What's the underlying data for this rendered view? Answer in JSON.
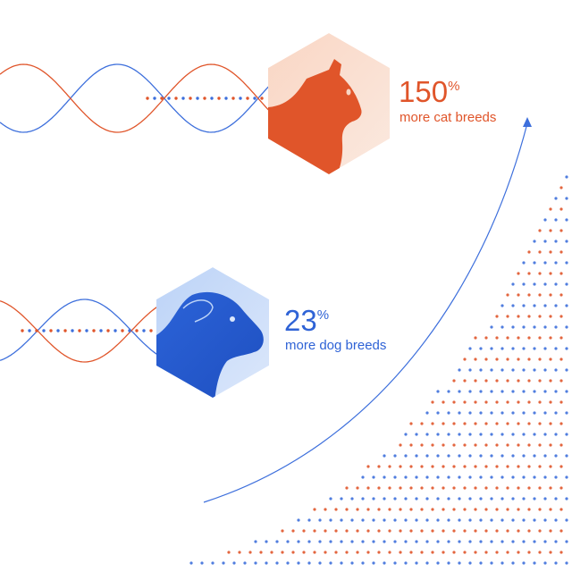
{
  "stats": [
    {
      "value": "150",
      "unit": "%",
      "label": "more cat breeds"
    },
    {
      "value": "23",
      "unit": "%",
      "label": "more dog breeds"
    }
  ]
}
